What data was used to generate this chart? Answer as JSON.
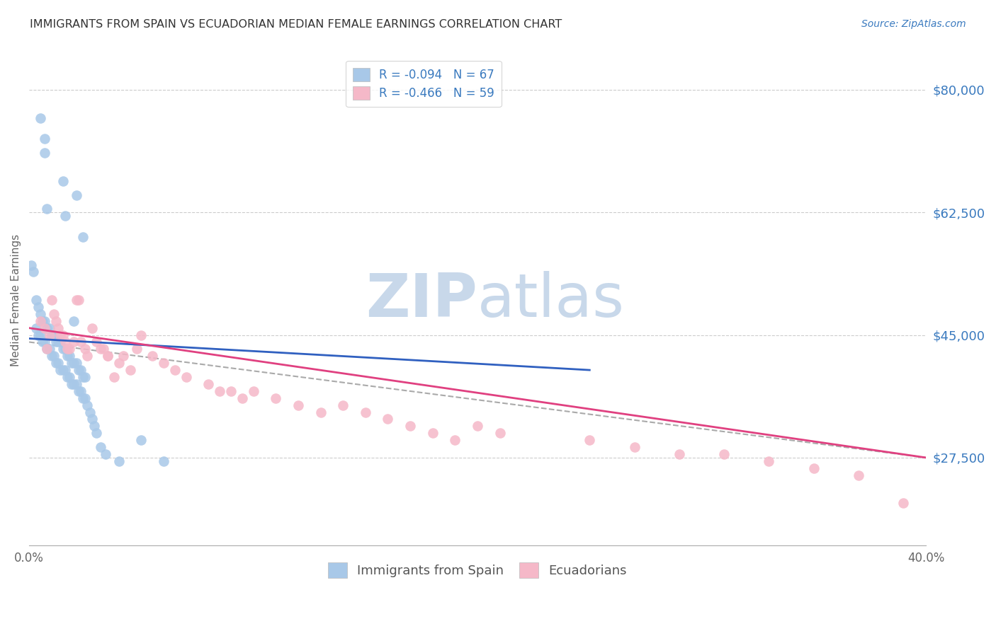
{
  "title": "IMMIGRANTS FROM SPAIN VS ECUADORIAN MEDIAN FEMALE EARNINGS CORRELATION CHART",
  "source": "Source: ZipAtlas.com",
  "ylabel": "Median Female Earnings",
  "ytick_labels": [
    "$27,500",
    "$45,000",
    "$62,500",
    "$80,000"
  ],
  "ytick_values": [
    27500,
    45000,
    62500,
    80000
  ],
  "ymin": 15000,
  "ymax": 85000,
  "xmin": 0.0,
  "xmax": 0.4,
  "color_blue": "#a8c8e8",
  "color_pink": "#f5b8c8",
  "color_blue_line": "#3060c0",
  "color_pink_line": "#e04080",
  "color_text_blue": "#3a7abf",
  "color_text_dark": "#333333",
  "color_axis": "#aaaaaa",
  "color_grid": "#cccccc",
  "watermark_color": "#c8d8ea",
  "blue_scatter_x": [
    0.005,
    0.007,
    0.007,
    0.015,
    0.021,
    0.008,
    0.016,
    0.024,
    0.001,
    0.002,
    0.003,
    0.004,
    0.005,
    0.006,
    0.007,
    0.008,
    0.009,
    0.01,
    0.011,
    0.012,
    0.013,
    0.014,
    0.015,
    0.016,
    0.017,
    0.018,
    0.019,
    0.02,
    0.021,
    0.022,
    0.023,
    0.024,
    0.025,
    0.003,
    0.004,
    0.005,
    0.006,
    0.007,
    0.008,
    0.009,
    0.01,
    0.011,
    0.012,
    0.013,
    0.014,
    0.015,
    0.016,
    0.017,
    0.018,
    0.019,
    0.02,
    0.021,
    0.022,
    0.023,
    0.024,
    0.025,
    0.026,
    0.027,
    0.028,
    0.029,
    0.03,
    0.032,
    0.034,
    0.04,
    0.05,
    0.06,
    0.02
  ],
  "blue_scatter_y": [
    76000,
    73000,
    71000,
    67000,
    65000,
    63000,
    62000,
    59000,
    55000,
    54000,
    50000,
    49000,
    48000,
    47000,
    47000,
    46000,
    46000,
    45000,
    45000,
    44000,
    44000,
    44000,
    43000,
    43000,
    42000,
    42000,
    41000,
    41000,
    41000,
    40000,
    40000,
    39000,
    39000,
    46000,
    45000,
    45000,
    44000,
    44000,
    43000,
    43000,
    42000,
    42000,
    41000,
    41000,
    40000,
    40000,
    40000,
    39000,
    39000,
    38000,
    38000,
    38000,
    37000,
    37000,
    36000,
    36000,
    35000,
    34000,
    33000,
    32000,
    31000,
    29000,
    28000,
    27000,
    30000,
    27000,
    47000
  ],
  "pink_scatter_x": [
    0.005,
    0.007,
    0.009,
    0.01,
    0.011,
    0.012,
    0.013,
    0.014,
    0.015,
    0.016,
    0.018,
    0.02,
    0.021,
    0.022,
    0.023,
    0.025,
    0.028,
    0.03,
    0.032,
    0.033,
    0.035,
    0.035,
    0.04,
    0.042,
    0.045,
    0.048,
    0.05,
    0.055,
    0.06,
    0.065,
    0.07,
    0.08,
    0.085,
    0.09,
    0.095,
    0.1,
    0.11,
    0.12,
    0.13,
    0.14,
    0.15,
    0.16,
    0.17,
    0.18,
    0.19,
    0.2,
    0.21,
    0.25,
    0.27,
    0.29,
    0.31,
    0.33,
    0.35,
    0.37,
    0.39,
    0.008,
    0.017,
    0.026,
    0.038
  ],
  "pink_scatter_y": [
    47000,
    46000,
    45000,
    50000,
    48000,
    47000,
    46000,
    45000,
    45000,
    44000,
    43000,
    44000,
    50000,
    50000,
    44000,
    43000,
    46000,
    44000,
    43000,
    43000,
    42000,
    42000,
    41000,
    42000,
    40000,
    43000,
    45000,
    42000,
    41000,
    40000,
    39000,
    38000,
    37000,
    37000,
    36000,
    37000,
    36000,
    35000,
    34000,
    35000,
    34000,
    33000,
    32000,
    31000,
    30000,
    32000,
    31000,
    30000,
    29000,
    28000,
    28000,
    27000,
    26000,
    25000,
    21000,
    43000,
    43000,
    42000,
    39000
  ],
  "blue_line_x": [
    0.0,
    0.25
  ],
  "blue_line_y": [
    44500,
    40000
  ],
  "pink_line_x": [
    0.0,
    0.4
  ],
  "pink_line_y": [
    46000,
    27500
  ],
  "dash_line_x": [
    0.0,
    0.4
  ],
  "dash_line_y": [
    44000,
    27500
  ]
}
